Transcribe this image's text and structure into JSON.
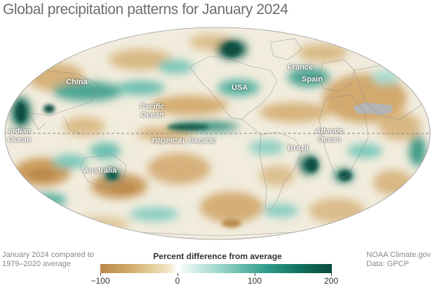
{
  "title": "Global precipitation patterns for January 2024",
  "map_labels": {
    "china": "China",
    "usa": "USA",
    "france": "France",
    "spain": "Spain",
    "pacific_ocean_line1": "Pacific",
    "pacific_ocean_line2": "Ocean",
    "indian_ocean_line1": "Indian",
    "indian_ocean_line2": "Ocean",
    "atlantic_ocean_line1": "Atlantic",
    "atlantic_ocean_line2": "Ocean",
    "tropical_pacific": "TROPICAL PACIFIC",
    "brazil": "Brazil",
    "australia": "Australia"
  },
  "footer": {
    "comparison_line1": "January 2024 compared to",
    "comparison_line2": "1979–2020 average",
    "source_line1": "NOAA Climate.gov",
    "source_line2": "Data: GPCP"
  },
  "legend": {
    "title": "Percent difference from average",
    "min": -100,
    "max": 200,
    "ticks": [
      "−100",
      "0",
      "100",
      "200"
    ],
    "tick_values": [
      -100,
      0,
      100,
      200
    ],
    "colors": {
      "dry": "#b9874a",
      "neutral": "#ffffff",
      "wet": "#0a4a3d",
      "no_data": "#b5b5b5"
    }
  }
}
